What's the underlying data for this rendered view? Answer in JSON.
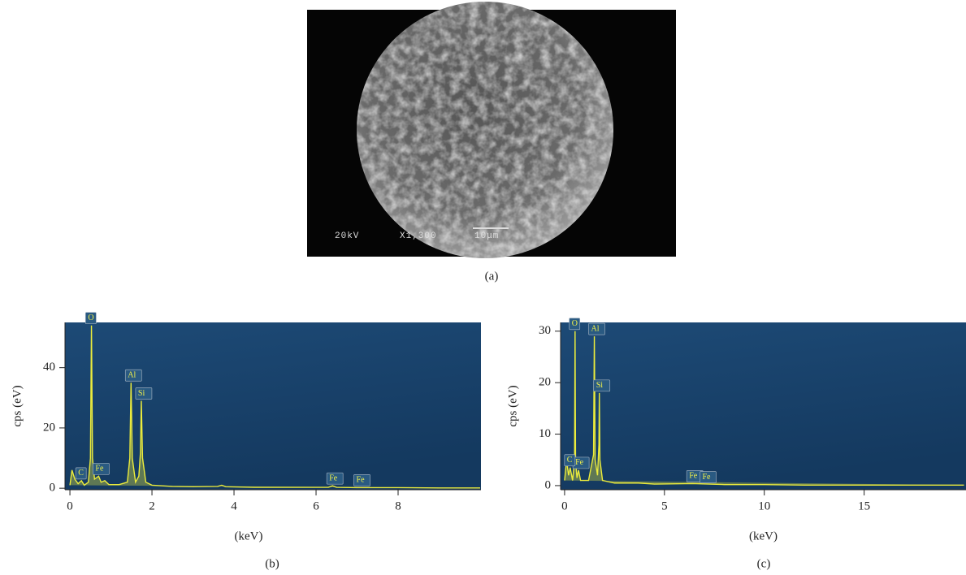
{
  "figure": {
    "sem": {
      "voltage": "20kV",
      "magnification": "X1,300",
      "scale": "10μm",
      "caption": "(a)"
    }
  },
  "chart_data": [
    {
      "type": "line",
      "caption": "(b)",
      "xlabel": "(keV)",
      "ylabel": "cps (eV)",
      "color": "#ecec3c",
      "x": [
        0,
        0.05,
        0.12,
        0.2,
        0.28,
        0.35,
        0.45,
        0.5,
        0.525,
        0.55,
        0.6,
        0.7,
        0.76,
        0.85,
        0.95,
        1.2,
        1.4,
        1.46,
        1.49,
        1.52,
        1.6,
        1.68,
        1.72,
        1.74,
        1.77,
        1.85,
        2.0,
        2.5,
        3.0,
        3.6,
        3.7,
        3.8,
        4.5,
        5.5,
        6.3,
        6.4,
        6.5,
        7.0,
        8.0,
        9.0,
        10
      ],
      "values": [
        1,
        6,
        3,
        1.5,
        2.5,
        1,
        2,
        10,
        54,
        10,
        3,
        4,
        2,
        2.5,
        1.2,
        1.2,
        2,
        10,
        35,
        10,
        2,
        4,
        12,
        29,
        10,
        2,
        1,
        0.6,
        0.5,
        0.6,
        1,
        0.5,
        0.3,
        0.3,
        0.3,
        0.8,
        0.3,
        0.2,
        0.2,
        0.1,
        0.1
      ],
      "xlim": [
        -0.12,
        10.02
      ],
      "ylim": [
        -0.5,
        55
      ],
      "xticks": [
        0,
        2,
        4,
        6,
        8
      ],
      "yticks": [
        0,
        20,
        40
      ],
      "annotations": [
        {
          "text": "O",
          "x": 0.52,
          "y": 54
        },
        {
          "text": "C",
          "x": 0.28,
          "y": 2.5
        },
        {
          "text": "Fe",
          "x": 0.7,
          "y": 4
        },
        {
          "text": "Al",
          "x": 1.49,
          "y": 35
        },
        {
          "text": "Si",
          "x": 1.74,
          "y": 29
        },
        {
          "text": "Fe",
          "x": 6.4,
          "y": 0.8
        },
        {
          "text": "Fe",
          "x": 7.06,
          "y": 0.2
        }
      ]
    },
    {
      "type": "line",
      "caption": "(c)",
      "xlabel": "(keV)",
      "ylabel": "cps (eV)",
      "color": "#ecec3c",
      "x": [
        0,
        0.1,
        0.2,
        0.28,
        0.4,
        0.5,
        0.525,
        0.55,
        0.62,
        0.7,
        0.8,
        1.2,
        1.45,
        1.49,
        1.53,
        1.65,
        1.72,
        1.74,
        1.77,
        1.9,
        2.5,
        3.7,
        4.5,
        6.4,
        8,
        10,
        12,
        15,
        17,
        20
      ],
      "values": [
        1,
        5,
        2,
        3.5,
        1,
        5,
        30,
        5,
        1.5,
        3,
        1,
        1,
        6,
        29,
        5,
        2,
        8,
        18,
        5,
        1,
        0.5,
        0.5,
        0.3,
        0.4,
        0.2,
        0.2,
        0.1,
        0.1,
        0.1,
        0.1
      ],
      "xlim": [
        -0.2,
        20.1
      ],
      "ylim": [
        -0.8,
        31.7
      ],
      "xticks": [
        0,
        5,
        10,
        15
      ],
      "yticks": [
        0,
        10,
        20,
        30
      ],
      "annotations": [
        {
          "text": "O",
          "x": 0.52,
          "y": 30
        },
        {
          "text": "Al",
          "x": 1.49,
          "y": 29
        },
        {
          "text": "Si",
          "x": 1.74,
          "y": 18
        },
        {
          "text": "Fe",
          "x": 0.7,
          "y": 3
        },
        {
          "text": "C",
          "x": 0.28,
          "y": 3.5
        },
        {
          "text": "Fe",
          "x": 6.4,
          "y": 0.4
        },
        {
          "text": "Fe",
          "x": 7.06,
          "y": 0.2
        }
      ]
    }
  ]
}
